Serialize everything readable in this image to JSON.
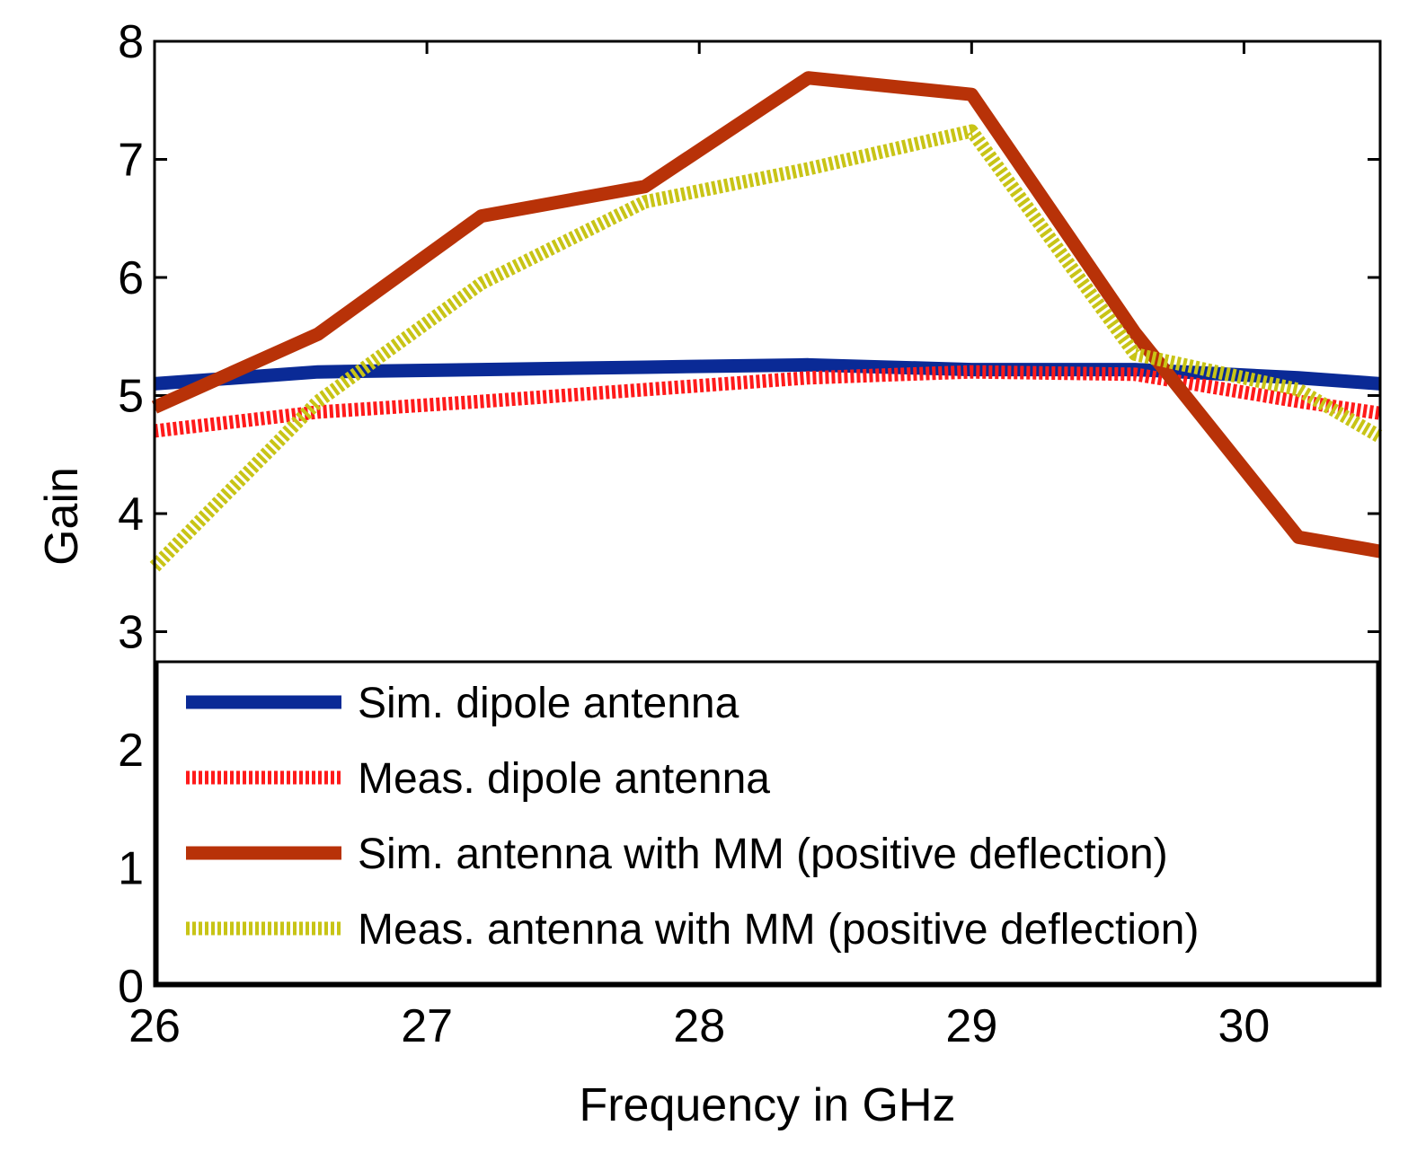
{
  "chart_data": {
    "type": "line",
    "title": "",
    "xlabel": "Frequency in GHz",
    "ylabel": "Gain",
    "xlim": [
      26,
      30.5
    ],
    "ylim": [
      0,
      8
    ],
    "xticks": [
      26,
      27,
      28,
      29,
      30
    ],
    "yticks": [
      0,
      1,
      2,
      3,
      4,
      5,
      6,
      7,
      8
    ],
    "grid": false,
    "legend_position": "bottom-inside",
    "series": [
      {
        "name": "Sim. dipole antenna",
        "color": "#0a2a96",
        "style": "solid",
        "x": [
          26,
          26.6,
          27.2,
          27.8,
          28.4,
          29.0,
          29.6,
          30.2,
          30.5
        ],
        "y": [
          5.1,
          5.2,
          5.22,
          5.24,
          5.26,
          5.22,
          5.22,
          5.15,
          5.1
        ]
      },
      {
        "name": "Meas. dipole antenna",
        "color": "#ff1a1a",
        "style": "dashed",
        "x": [
          26,
          26.6,
          27.2,
          27.8,
          28.4,
          29.0,
          29.6,
          30.2,
          30.5
        ],
        "y": [
          4.7,
          4.86,
          4.95,
          5.05,
          5.15,
          5.2,
          5.18,
          4.95,
          4.85
        ]
      },
      {
        "name": "Sim. antenna with MM (positive deflection)",
        "color": "#b83208",
        "style": "solid",
        "x": [
          26,
          26.6,
          27.2,
          27.8,
          28.4,
          29.0,
          29.6,
          30.2,
          30.5
        ],
        "y": [
          4.9,
          5.52,
          6.52,
          6.77,
          7.69,
          7.55,
          5.53,
          3.8,
          3.68
        ]
      },
      {
        "name": "Meas. antenna with MM (positive deflection)",
        "color": "#c8c416",
        "style": "dashed",
        "x": [
          26,
          26.6,
          27.2,
          27.8,
          28.4,
          29.0,
          29.6,
          30.2,
          30.5
        ],
        "y": [
          3.55,
          4.95,
          5.95,
          6.64,
          6.92,
          7.24,
          5.35,
          5.05,
          4.65
        ]
      }
    ]
  }
}
